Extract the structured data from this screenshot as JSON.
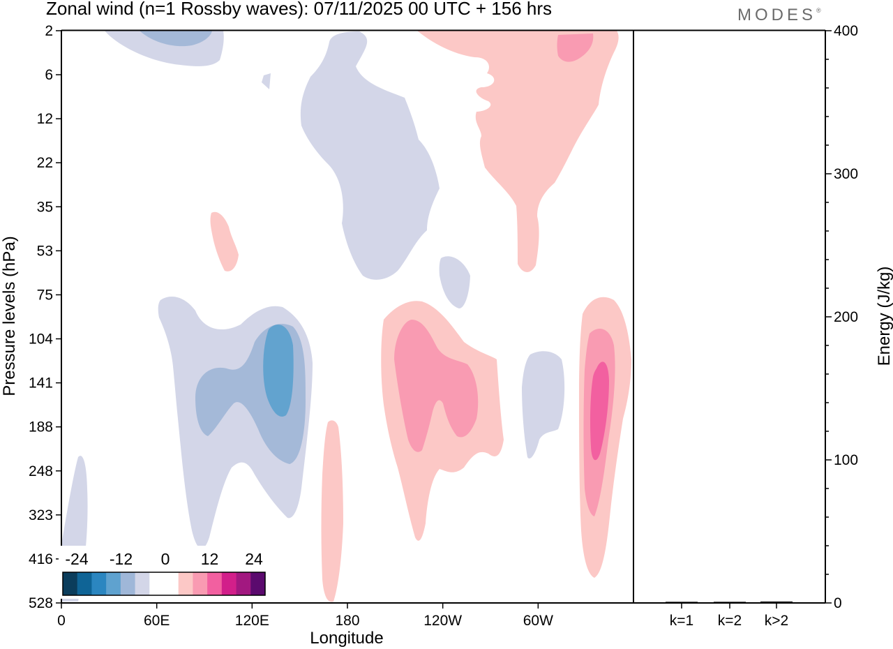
{
  "title": "Zonal wind (n=1 Rossby waves):  07/11/2025  00 UTC  + 156 hrs",
  "brand": "MODES",
  "chart_data": {
    "type": "contour",
    "xlabel": "Longitude",
    "ylabel": "Pressure levels (hPa)",
    "x_ticks": [
      "0",
      "60E",
      "120E",
      "180",
      "120W",
      "60W"
    ],
    "y_ticks": [
      "2",
      "6",
      "12",
      "22",
      "35",
      "53",
      "75",
      "104",
      "141",
      "188",
      "248",
      "323",
      "416",
      "528"
    ],
    "colorbar": {
      "labels": [
        "-24",
        "-12",
        "0",
        "12",
        "24"
      ],
      "colors": [
        "#0b3d5c",
        "#0f6496",
        "#2b86c0",
        "#5fa2cf",
        "#9fb7d8",
        "#d3d6e8",
        "#ffffff",
        "#ffffff",
        "#fcc8c6",
        "#f99bb2",
        "#f260a0",
        "#d21f8a",
        "#a21880",
        "#5b0a6e"
      ]
    },
    "energy_panel": {
      "ylabel": "Energy (J/kg)",
      "ylim": [
        0,
        400
      ],
      "y_ticks": [
        "0",
        "100",
        "200",
        "300",
        "400"
      ],
      "categories": [
        "k=1",
        "k=2",
        "k>2"
      ],
      "values": [
        0.3,
        0.3,
        0.5
      ]
    }
  }
}
